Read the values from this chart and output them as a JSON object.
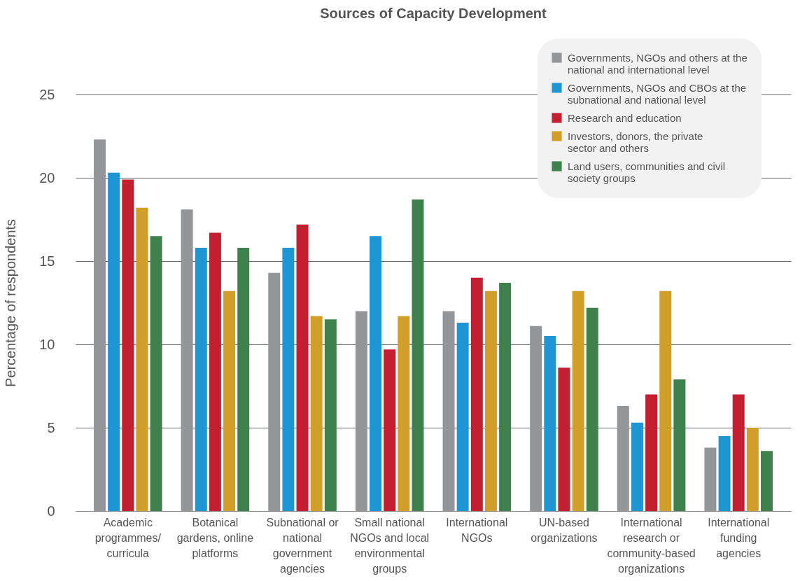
{
  "chart_data": {
    "type": "bar",
    "title": "Sources of Capacity Development",
    "ylabel": "Percentage of respondents",
    "categories": [
      "Academic programmes/ curricula",
      "Botanical gardens, online platforms",
      "Subnational or national government agencies",
      "Small national NGOs and local environmental groups",
      "International NGOs",
      "UN-based organizations",
      "International research or community-based organizations",
      "International funding agencies"
    ],
    "series": [
      {
        "name": "Governments, NGOs and others at the national and international level",
        "color": "#939598",
        "values": [
          22.3,
          18.1,
          14.3,
          12.0,
          12.0,
          11.1,
          6.3,
          3.8
        ]
      },
      {
        "name": "Governments, NGOs and CBOs at the subnational and national level",
        "color": "#1e96d4",
        "values": [
          20.3,
          15.8,
          15.8,
          16.5,
          11.3,
          10.5,
          5.3,
          4.5
        ]
      },
      {
        "name": "Research and education",
        "color": "#c41f30",
        "values": [
          19.9,
          16.7,
          17.2,
          9.7,
          14.0,
          8.6,
          7.0,
          7.0
        ]
      },
      {
        "name": "Investors, donors, the private sector and others",
        "color": "#d19e29",
        "values": [
          18.2,
          13.2,
          11.7,
          11.7,
          13.2,
          13.2,
          13.2,
          5.0
        ]
      },
      {
        "name": "Land users, communities and civil society groups",
        "color": "#3f814c",
        "values": [
          16.5,
          15.8,
          11.5,
          18.7,
          13.7,
          12.2,
          7.9,
          3.6
        ]
      }
    ],
    "ylim": [
      0,
      25
    ],
    "yticks": [
      0,
      5,
      10,
      15,
      20,
      25
    ],
    "grid": "y",
    "legend": "top right"
  }
}
